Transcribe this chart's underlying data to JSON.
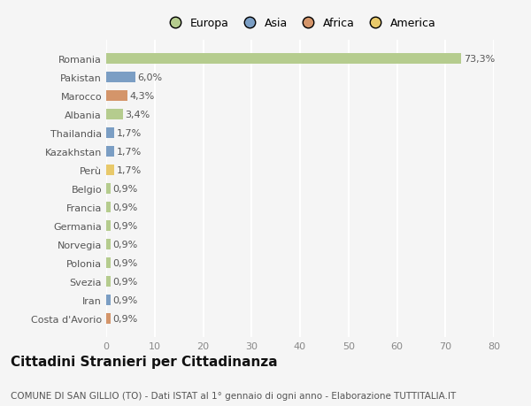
{
  "countries": [
    "Romania",
    "Pakistan",
    "Marocco",
    "Albania",
    "Thailandia",
    "Kazakhstan",
    "Perù",
    "Belgio",
    "Francia",
    "Germania",
    "Norvegia",
    "Polonia",
    "Svezia",
    "Iran",
    "Costa d'Avorio"
  ],
  "values": [
    73.3,
    6.0,
    4.3,
    3.4,
    1.7,
    1.7,
    1.7,
    0.9,
    0.9,
    0.9,
    0.9,
    0.9,
    0.9,
    0.9,
    0.9
  ],
  "labels": [
    "73,3%",
    "6,0%",
    "4,3%",
    "3,4%",
    "1,7%",
    "1,7%",
    "1,7%",
    "0,9%",
    "0,9%",
    "0,9%",
    "0,9%",
    "0,9%",
    "0,9%",
    "0,9%",
    "0,9%"
  ],
  "continents": [
    "Europa",
    "Asia",
    "Africa",
    "Europa",
    "Asia",
    "Asia",
    "America",
    "Europa",
    "Europa",
    "Europa",
    "Europa",
    "Europa",
    "Europa",
    "Asia",
    "Africa"
  ],
  "colors": {
    "Europa": "#b5cc8e",
    "Asia": "#7b9ec4",
    "Africa": "#d4956a",
    "America": "#e8c96a"
  },
  "legend_order": [
    "Europa",
    "Asia",
    "Africa",
    "America"
  ],
  "title": "Cittadini Stranieri per Cittadinanza",
  "subtitle": "COMUNE DI SAN GILLIO (TO) - Dati ISTAT al 1° gennaio di ogni anno - Elaborazione TUTTITALIA.IT",
  "xlim": [
    0,
    80
  ],
  "xticks": [
    0,
    10,
    20,
    30,
    40,
    50,
    60,
    70,
    80
  ],
  "background_color": "#f5f5f5",
  "grid_color": "#ffffff",
  "bar_height": 0.55,
  "title_fontsize": 11,
  "subtitle_fontsize": 7.5,
  "tick_fontsize": 8,
  "label_fontsize": 8,
  "legend_fontsize": 9
}
